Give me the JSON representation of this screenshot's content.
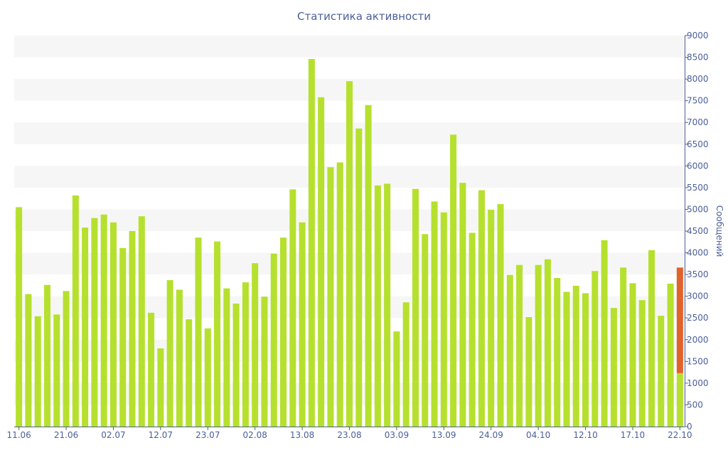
{
  "chart_data": {
    "type": "bar",
    "title": "Статистика активности",
    "xlabel": "",
    "ylabel": "Сообщений",
    "y_axis_side": "right",
    "ylim": [
      0,
      9000
    ],
    "yticks": [
      0,
      500,
      1000,
      1500,
      2000,
      2500,
      3000,
      3500,
      4000,
      4500,
      5000,
      5500,
      6000,
      6500,
      7000,
      7500,
      8000,
      8500,
      9000
    ],
    "x_tick_labels": [
      "11.06",
      "21.06",
      "02.07",
      "12.07",
      "23.07",
      "02.08",
      "13.08",
      "23.08",
      "03.09",
      "13.09",
      "24.09",
      "04.10",
      "12.10",
      "17.10",
      "22.10"
    ],
    "grid": "horizontal alternating bands",
    "colors": {
      "bar": "#b6e02e",
      "current_bar_top": "#e2622b",
      "axis": "#4b5f99",
      "band": "#f6f6f6",
      "title": "#4b5f99"
    },
    "values": [
      5050,
      3050,
      2540,
      3260,
      2580,
      3120,
      5320,
      4580,
      4800,
      4880,
      4700,
      4110,
      4500,
      4840,
      2620,
      1800,
      3370,
      3150,
      2470,
      4350,
      2260,
      4260,
      3180,
      2830,
      3320,
      3760,
      2990,
      3980,
      4350,
      5460,
      4700,
      8460,
      7580,
      5970,
      6080,
      7950,
      6860,
      7400,
      5550,
      5590,
      2190,
      2860,
      5470,
      4430,
      5180,
      4930,
      6720,
      5610,
      4460,
      5440,
      4990,
      5120,
      3490,
      3720,
      2520,
      3720,
      3850,
      3420,
      3100,
      3240,
      3070,
      3580,
      4290,
      2730,
      3660,
      3300,
      2910,
      4060,
      2550,
      3290,
      3660
    ],
    "current_period_split": 1230
  }
}
